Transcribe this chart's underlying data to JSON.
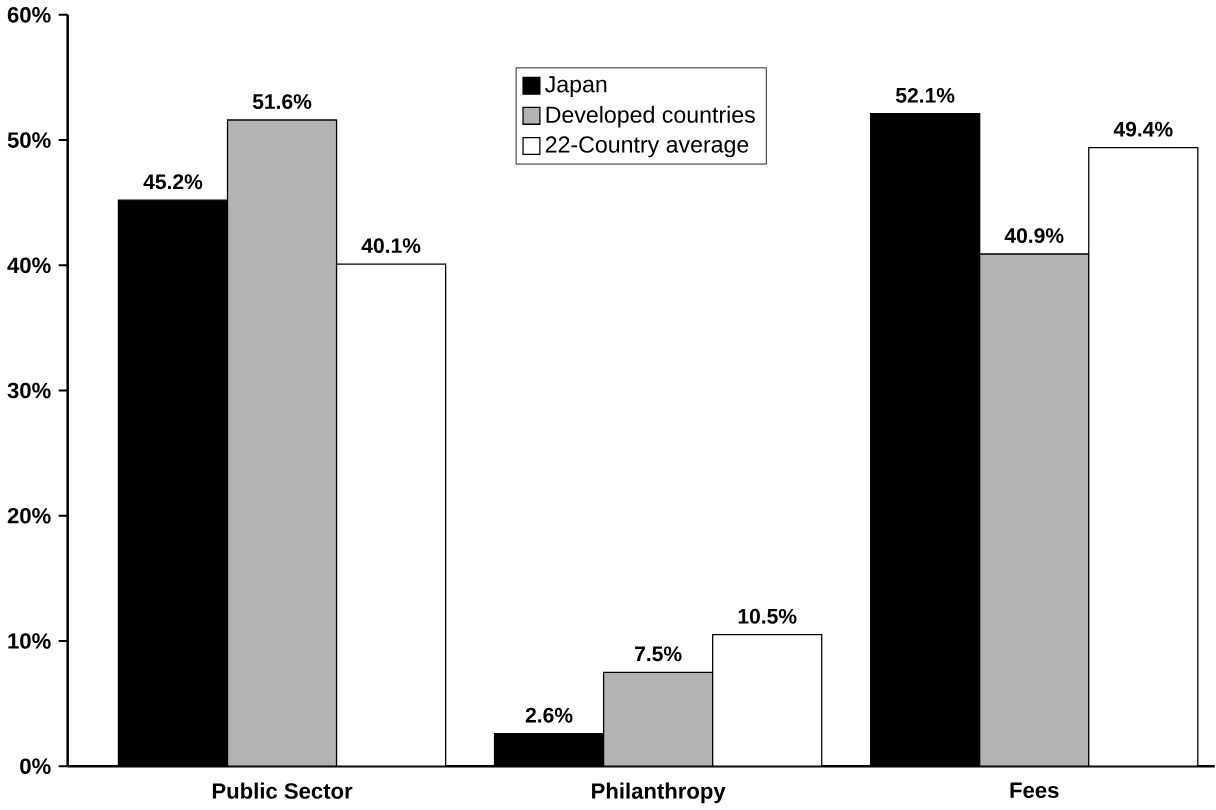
{
  "chart_data": {
    "type": "bar",
    "categories": [
      "Public Sector",
      "Philanthropy",
      "Fees"
    ],
    "series": [
      {
        "name": "Japan",
        "color": "#000000",
        "values": [
          45.2,
          2.6,
          52.1
        ],
        "value_labels": [
          "45.2%",
          "2.6%",
          "52.1%"
        ]
      },
      {
        "name": "Developed countries",
        "color": "#b3b3b3",
        "values": [
          51.6,
          7.5,
          40.9
        ],
        "value_labels": [
          "51.6%",
          "7.5%",
          "40.9%"
        ]
      },
      {
        "name": "22-Country average",
        "color": "#ffffff",
        "values": [
          40.1,
          10.5,
          49.4
        ],
        "value_labels": [
          "40.1%",
          "10.5%",
          "49.4%"
        ]
      }
    ],
    "ylim": [
      0,
      60
    ],
    "yticks": [
      {
        "value": 0,
        "label": "0%"
      },
      {
        "value": 10,
        "label": "10%"
      },
      {
        "value": 20,
        "label": "20%"
      },
      {
        "value": 30,
        "label": "30%"
      },
      {
        "value": 40,
        "label": "40%"
      },
      {
        "value": 50,
        "label": "50%"
      },
      {
        "value": 60,
        "label": "60%"
      }
    ],
    "grid": false,
    "legend": "top"
  }
}
